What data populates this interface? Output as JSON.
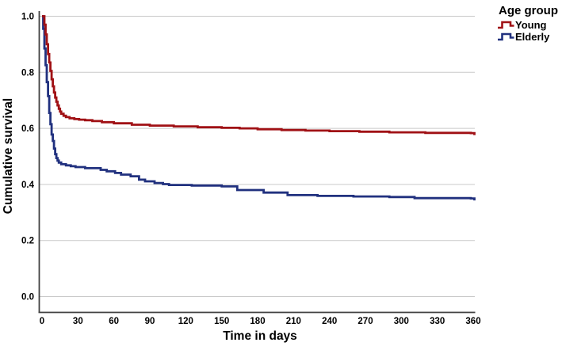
{
  "axes": {
    "y_title": "Cumulative survival",
    "x_title": "Time in days",
    "y_ticks": {
      "values": [
        0.0,
        0.2,
        0.4,
        0.6,
        0.8,
        1.0
      ],
      "labels": [
        "0.0",
        "0.2",
        "0.4",
        "0.6",
        "0.8",
        "1.0"
      ]
    },
    "x_ticks": {
      "values": [
        0,
        30,
        60,
        90,
        120,
        150,
        180,
        210,
        240,
        270,
        300,
        330,
        360
      ],
      "labels": [
        "0",
        "30",
        "60",
        "90",
        "120",
        "150",
        "180",
        "210",
        "240",
        "270",
        "300",
        "330",
        "360"
      ]
    }
  },
  "legend": {
    "title": "Age group",
    "items": [
      {
        "label": "Young",
        "color": "#a01115",
        "swatch": "step-line-icon"
      },
      {
        "label": "Elderly",
        "color": "#21317f",
        "swatch": "step-line-icon"
      }
    ]
  },
  "style_colors": {
    "background": "#ffffff",
    "gridline": "#c9c9c9",
    "axis_line": "#3f3f3f",
    "text": "#000000",
    "young_red": "#a01115",
    "elderly_blue": "#21317f"
  },
  "chart_data": {
    "type": "line",
    "subtype": "kaplan_meier_step",
    "title": "",
    "xlabel": "Time in days",
    "ylabel": "Cumulative survival",
    "x_unit": "days",
    "xlim": [
      0,
      365
    ],
    "ylim": [
      0,
      1.0
    ],
    "grid": "horizontal-only",
    "legend_position": "top-right-outside",
    "legend_title": "Age group",
    "series": [
      {
        "name": "Elderly",
        "color": "#21317f",
        "points": [
          [
            0,
            1.0
          ],
          [
            1,
            0.955
          ],
          [
            2,
            0.885
          ],
          [
            3,
            0.825
          ],
          [
            4,
            0.765
          ],
          [
            5,
            0.715
          ],
          [
            6,
            0.655
          ],
          [
            7,
            0.615
          ],
          [
            8,
            0.578
          ],
          [
            9,
            0.555
          ],
          [
            10,
            0.528
          ],
          [
            11,
            0.508
          ],
          [
            12,
            0.494
          ],
          [
            13,
            0.485
          ],
          [
            14,
            0.478
          ],
          [
            16,
            0.472
          ],
          [
            20,
            0.468
          ],
          [
            24,
            0.465
          ],
          [
            28,
            0.462
          ],
          [
            36,
            0.458
          ],
          [
            49,
            0.452
          ],
          [
            54,
            0.447
          ],
          [
            61,
            0.441
          ],
          [
            66,
            0.435
          ],
          [
            74,
            0.429
          ],
          [
            81,
            0.417
          ],
          [
            86,
            0.411
          ],
          [
            94,
            0.405
          ],
          [
            101,
            0.401
          ],
          [
            106,
            0.398
          ],
          [
            125,
            0.396
          ],
          [
            150,
            0.393
          ],
          [
            163,
            0.38
          ],
          [
            185,
            0.371
          ],
          [
            205,
            0.362
          ],
          [
            230,
            0.359
          ],
          [
            260,
            0.357
          ],
          [
            290,
            0.355
          ],
          [
            311,
            0.351
          ],
          [
            358,
            0.35
          ],
          [
            361,
            0.343
          ]
        ]
      },
      {
        "name": "Young",
        "color": "#a01115",
        "points": [
          [
            0,
            1.0
          ],
          [
            2,
            0.97
          ],
          [
            3,
            0.935
          ],
          [
            4,
            0.9
          ],
          [
            5,
            0.865
          ],
          [
            6,
            0.835
          ],
          [
            7,
            0.805
          ],
          [
            8,
            0.775
          ],
          [
            9,
            0.75
          ],
          [
            10,
            0.728
          ],
          [
            11,
            0.71
          ],
          [
            12,
            0.695
          ],
          [
            13,
            0.682
          ],
          [
            14,
            0.67
          ],
          [
            15,
            0.66
          ],
          [
            16,
            0.652
          ],
          [
            18,
            0.645
          ],
          [
            20,
            0.64
          ],
          [
            23,
            0.636
          ],
          [
            27,
            0.633
          ],
          [
            31,
            0.631
          ],
          [
            36,
            0.629
          ],
          [
            42,
            0.626
          ],
          [
            50,
            0.622
          ],
          [
            60,
            0.618
          ],
          [
            75,
            0.613
          ],
          [
            90,
            0.61
          ],
          [
            110,
            0.607
          ],
          [
            130,
            0.604
          ],
          [
            150,
            0.602
          ],
          [
            165,
            0.6
          ],
          [
            180,
            0.597
          ],
          [
            200,
            0.594
          ],
          [
            220,
            0.592
          ],
          [
            240,
            0.59
          ],
          [
            265,
            0.588
          ],
          [
            290,
            0.586
          ],
          [
            320,
            0.584
          ],
          [
            358,
            0.583
          ],
          [
            361,
            0.576
          ]
        ]
      }
    ]
  }
}
